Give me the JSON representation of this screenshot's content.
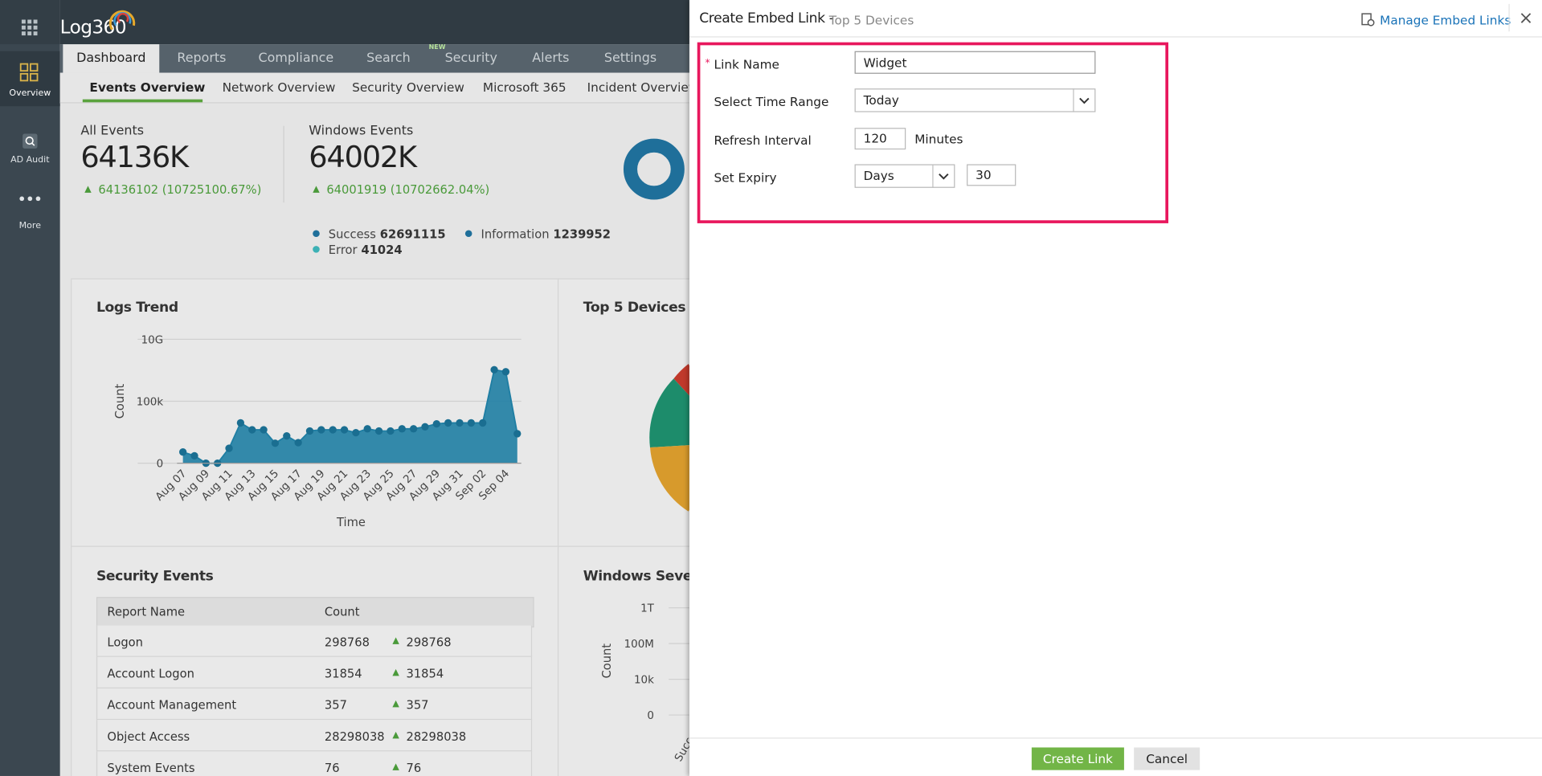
{
  "app": {
    "logo": "Log360",
    "sidebar": [
      "Overview",
      "AD Audit",
      "More"
    ],
    "tabs": [
      "Dashboard",
      "Reports",
      "Compliance",
      "Search",
      "Security",
      "Alerts",
      "Settings"
    ],
    "badge": "NEW",
    "subtabs": [
      "Events Overview",
      "Network Overview",
      "Security Overview",
      "Microsoft 365",
      "Incident Overview"
    ]
  },
  "summary": {
    "cards": [
      {
        "title": "All Events",
        "value": "64136K",
        "change": "64136102 (10725100.67%)"
      },
      {
        "title": "Windows Events",
        "value": "64002K",
        "change": "64001919 (10702662.04%)"
      }
    ],
    "legend": [
      {
        "label": "Success",
        "value": 62691115
      },
      {
        "label": "Information",
        "value": 1239952
      },
      {
        "label": "Error",
        "value": 41024
      }
    ]
  },
  "logs_trend": {
    "type": "area",
    "title": "Logs Trend",
    "x_label": "Time",
    "y_label": "Count",
    "y_scale": "symlog",
    "color": "#1f7ea3",
    "categories": [
      "Aug 07",
      null,
      "Aug 09",
      null,
      "Aug 11",
      null,
      "Aug 13",
      null,
      "Aug 15",
      null,
      "Aug 17",
      null,
      "Aug 19",
      null,
      "Aug 21",
      null,
      "Aug 23",
      null,
      "Aug 25",
      null,
      "Aug 27",
      null,
      "Aug 29",
      null,
      "Aug 31",
      null,
      "Sep 02",
      null,
      "Sep 04",
      null
    ],
    "values": [
      7,
      3,
      0,
      0,
      15,
      1800,
      500,
      500,
      40,
      160,
      45,
      400,
      500,
      500,
      500,
      290,
      600,
      400,
      400,
      600,
      600,
      870,
      1500,
      1800,
      1800,
      1800,
      1800,
      35000000,
      24000000,
      240
    ],
    "ylim": [
      0,
      10000000000
    ],
    "yticks": [
      0,
      {
        "value": 100000,
        "label": "100k"
      },
      {
        "value": 10000000000,
        "label": "10G"
      }
    ],
    "grid": true
  },
  "top_devices": {
    "title": "Top 5 Devices"
  },
  "security_events": {
    "title": "Security Events",
    "columns": [
      "Report Name",
      "Count"
    ],
    "rows": [
      {
        "name": "Logon",
        "count": 298768,
        "change": 298768
      },
      {
        "name": "Account Logon",
        "count": 31854,
        "change": 31854
      },
      {
        "name": "Account Management",
        "count": 357,
        "change": 357
      },
      {
        "name": "Object Access",
        "count": 28298038,
        "change": 28298038
      },
      {
        "name": "System Events",
        "count": 76,
        "change": 76
      }
    ]
  },
  "windows_severity": {
    "title": "Windows Severity",
    "y_label": "Count",
    "category": "Success",
    "y_scale": "symlog",
    "ylim": [
      0,
      1000000000000
    ],
    "yticks": [
      0,
      {
        "value": 10000,
        "label": "10k"
      },
      {
        "value": 100000000,
        "label": "100M"
      },
      {
        "value": 1000000000000,
        "label": "1T"
      }
    ]
  },
  "modal": {
    "title": "Create Embed Link -",
    "subtitle": "Top 5 Devices",
    "manage": "Manage Embed Links",
    "fields": {
      "link_name": {
        "label": "Link Name",
        "value": "Widget"
      },
      "time_range": {
        "label": "Select Time Range",
        "value": "Today"
      },
      "refresh": {
        "label": "Refresh Interval",
        "value": 120,
        "unit": "Minutes"
      },
      "expiry": {
        "label": "Set Expiry",
        "unit": "Days",
        "value": 30
      }
    },
    "buttons": {
      "create": "Create Link",
      "cancel": "Cancel"
    }
  }
}
